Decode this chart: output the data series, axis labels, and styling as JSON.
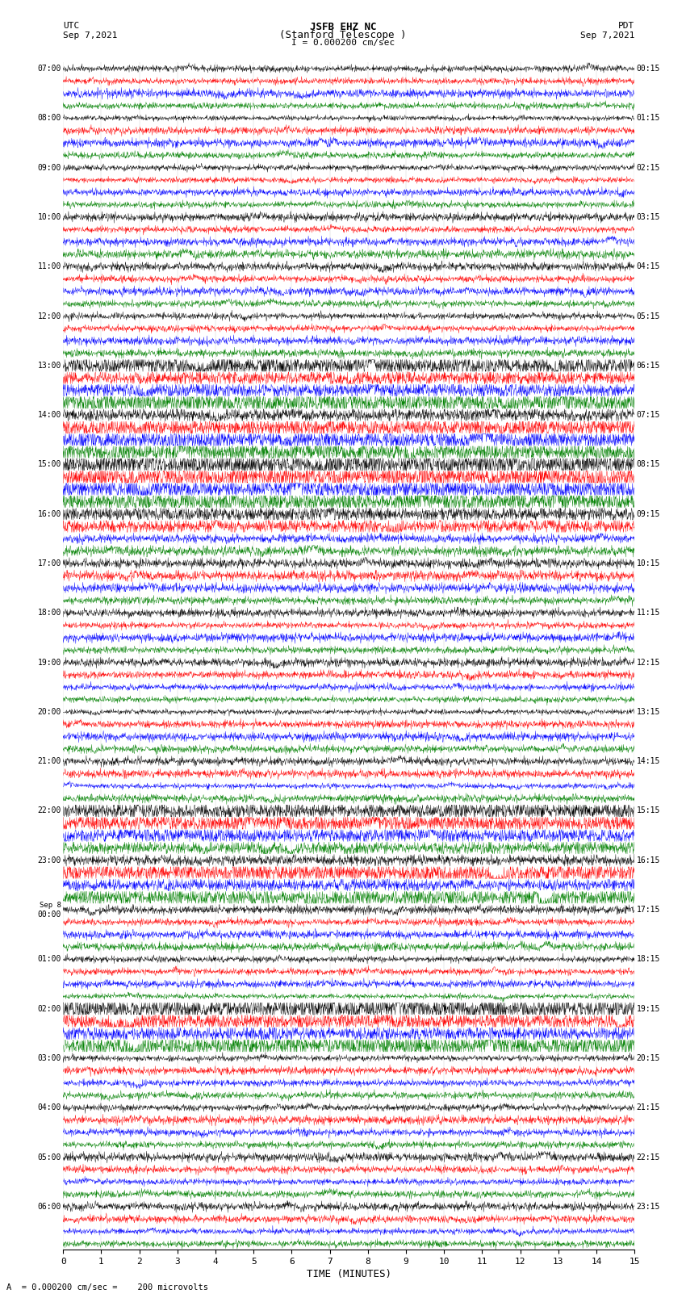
{
  "title_line1": "JSFB EHZ NC",
  "title_line2": "(Stanford Telescope )",
  "scale_label": "I = 0.000200 cm/sec",
  "utc_label": "UTC",
  "utc_date": "Sep 7,2021",
  "pdt_label": "PDT",
  "pdt_date": "Sep 7,2021",
  "xlabel": "TIME (MINUTES)",
  "bottom_note": "A  = 0.000200 cm/sec =    200 microvolts",
  "xlim": [
    0,
    15
  ],
  "xticks": [
    0,
    1,
    2,
    3,
    4,
    5,
    6,
    7,
    8,
    9,
    10,
    11,
    12,
    13,
    14,
    15
  ],
  "trace_colors": [
    "black",
    "red",
    "blue",
    "green"
  ],
  "num_rows": 96,
  "fig_width": 8.5,
  "fig_height": 16.13,
  "dpi": 100,
  "bg_color": "white",
  "noise_scale": 0.12,
  "left_times_utc": [
    "07:00",
    "",
    "",
    "",
    "08:00",
    "",
    "",
    "",
    "09:00",
    "",
    "",
    "",
    "10:00",
    "",
    "",
    "",
    "11:00",
    "",
    "",
    "",
    "12:00",
    "",
    "",
    "",
    "13:00",
    "",
    "",
    "",
    "14:00",
    "",
    "",
    "",
    "15:00",
    "",
    "",
    "",
    "16:00",
    "",
    "",
    "",
    "17:00",
    "",
    "",
    "",
    "18:00",
    "",
    "",
    "",
    "19:00",
    "",
    "",
    "",
    "20:00",
    "",
    "",
    "",
    "21:00",
    "",
    "",
    "",
    "22:00",
    "",
    "",
    "",
    "23:00",
    "",
    "",
    "",
    "Sep 8\n00:00",
    "",
    "",
    "",
    "01:00",
    "",
    "",
    "",
    "02:00",
    "",
    "",
    "",
    "03:00",
    "",
    "",
    "",
    "04:00",
    "",
    "",
    "",
    "05:00",
    "",
    "",
    "",
    "06:00",
    "",
    "",
    ""
  ],
  "right_times_pdt": [
    "00:15",
    "",
    "",
    "",
    "01:15",
    "",
    "",
    "",
    "02:15",
    "",
    "",
    "",
    "03:15",
    "",
    "",
    "",
    "04:15",
    "",
    "",
    "",
    "05:15",
    "",
    "",
    "",
    "06:15",
    "",
    "",
    "",
    "07:15",
    "",
    "",
    "",
    "08:15",
    "",
    "",
    "",
    "09:15",
    "",
    "",
    "",
    "10:15",
    "",
    "",
    "",
    "11:15",
    "",
    "",
    "",
    "12:15",
    "",
    "",
    "",
    "13:15",
    "",
    "",
    "",
    "14:15",
    "",
    "",
    "",
    "15:15",
    "",
    "",
    "",
    "16:15",
    "",
    "",
    "",
    "17:15",
    "",
    "",
    "",
    "18:15",
    "",
    "",
    "",
    "19:15",
    "",
    "",
    "",
    "20:15",
    "",
    "",
    "",
    "21:15",
    "",
    "",
    "",
    "22:15",
    "",
    "",
    "",
    "23:15",
    "",
    "",
    ""
  ]
}
